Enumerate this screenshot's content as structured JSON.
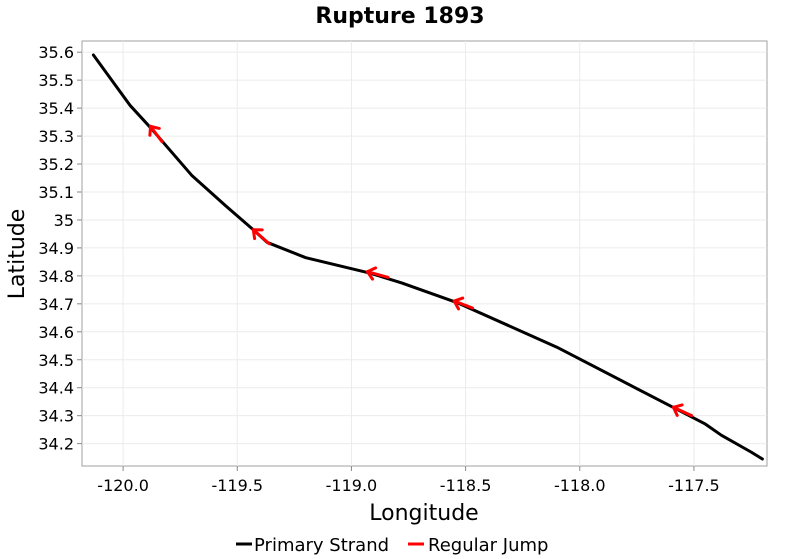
{
  "chart_data": {
    "type": "line",
    "title": "Rupture 1893",
    "xlabel": "Longitude",
    "ylabel": "Latitude",
    "xlim": [
      -120.18,
      -117.18
    ],
    "ylim": [
      34.12,
      35.64
    ],
    "x_ticks": [
      -120.0,
      -119.5,
      -119.0,
      -118.5,
      -118.0,
      -117.5
    ],
    "x_tick_labels": [
      "-120.0",
      "-119.5",
      "-119.0",
      "-118.5",
      "-118.0",
      "-117.5"
    ],
    "y_ticks": [
      34.2,
      34.3,
      34.4,
      34.5,
      34.6,
      34.7,
      34.8,
      34.9,
      35.0,
      35.1,
      35.2,
      35.3,
      35.4,
      35.5,
      35.6
    ],
    "y_tick_labels": [
      "34.2",
      "34.3",
      "34.4",
      "34.5",
      "34.6",
      "34.7",
      "34.8",
      "34.9",
      "35",
      "35.1",
      "35.2",
      "35.3",
      "35.4",
      "35.5",
      "35.6"
    ],
    "grid": true,
    "legend_position": "bottom",
    "series": [
      {
        "name": "Primary Strand",
        "color": "#000000",
        "points": [
          [
            -120.13,
            35.59
          ],
          [
            -119.97,
            35.41
          ],
          [
            -119.88,
            35.33
          ],
          [
            -119.7,
            35.16
          ],
          [
            -119.55,
            35.05
          ],
          [
            -119.43,
            34.965
          ],
          [
            -119.37,
            34.92
          ],
          [
            -119.2,
            34.865
          ],
          [
            -118.92,
            34.81
          ],
          [
            -118.78,
            34.775
          ],
          [
            -118.54,
            34.705
          ],
          [
            -118.1,
            34.545
          ],
          [
            -117.58,
            34.325
          ],
          [
            -117.45,
            34.27
          ],
          [
            -117.38,
            34.23
          ],
          [
            -117.25,
            34.17
          ],
          [
            -117.2,
            34.145
          ]
        ]
      },
      {
        "name": "Regular Jump",
        "color": "#ff0000",
        "segments": [
          [
            [
              -119.83,
              35.28
            ],
            [
              -119.88,
              35.335
            ]
          ],
          [
            [
              -119.36,
              34.915
            ],
            [
              -119.43,
              34.965
            ]
          ],
          [
            [
              -118.84,
              34.795
            ],
            [
              -118.93,
              34.815
            ]
          ],
          [
            [
              -118.47,
              34.685
            ],
            [
              -118.55,
              34.71
            ]
          ],
          [
            [
              -117.51,
              34.3
            ],
            [
              -117.59,
              34.33
            ]
          ]
        ]
      }
    ]
  }
}
